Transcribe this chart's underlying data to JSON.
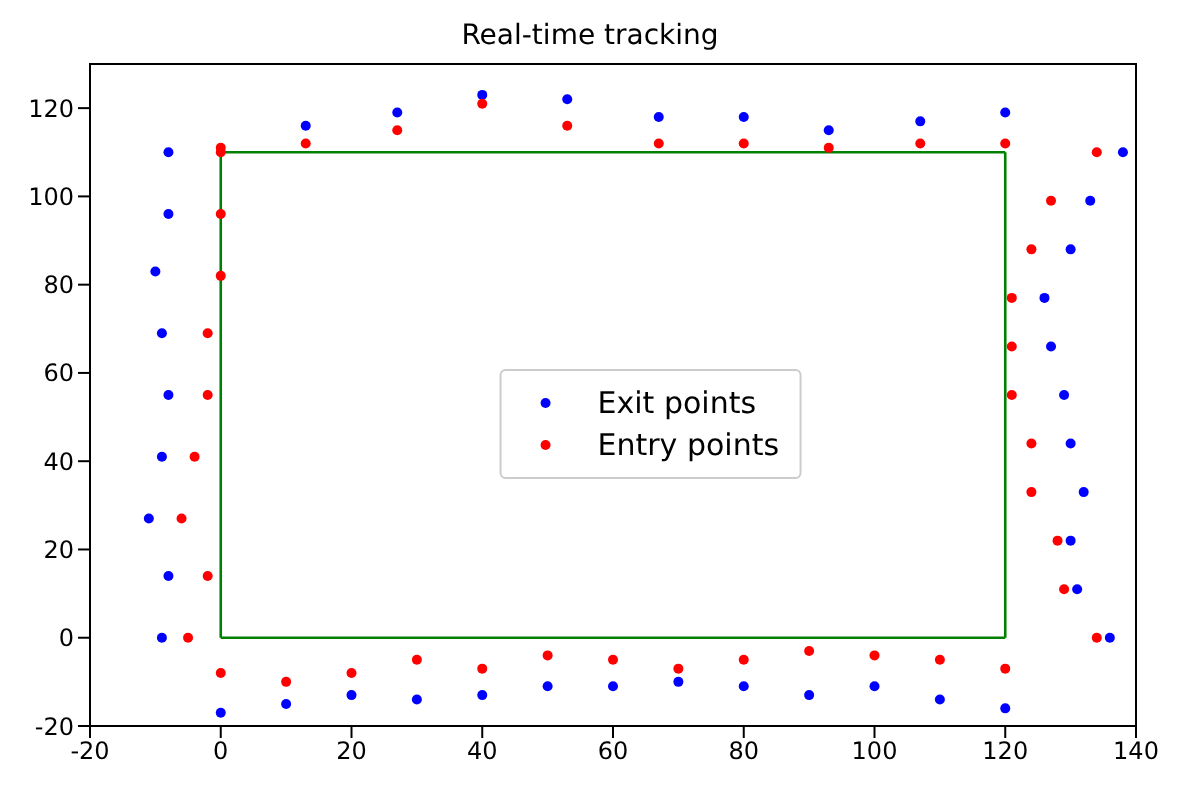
{
  "chart_data": {
    "type": "scatter",
    "title": "Real-time tracking",
    "xlim": [
      -20,
      140
    ],
    "ylim": [
      -20,
      130
    ],
    "xticks": [
      -20,
      0,
      20,
      40,
      60,
      80,
      100,
      120,
      140
    ],
    "yticks": [
      -20,
      0,
      20,
      40,
      60,
      80,
      100,
      120
    ],
    "grid": false,
    "legend": "center",
    "marker": "circle",
    "series": [
      {
        "name": "Exit points",
        "color": "#0000ff",
        "x": [
          -8,
          -8,
          -10,
          -9,
          -8,
          -9,
          -11,
          -8,
          -9,
          0,
          10,
          20,
          30,
          40,
          50,
          60,
          70,
          80,
          90,
          100,
          110,
          120,
          136,
          131,
          130,
          132,
          130,
          129,
          127,
          126,
          130,
          133,
          138,
          13,
          27,
          40,
          53,
          67,
          80,
          93,
          107,
          120
        ],
        "values": [
          110,
          96,
          83,
          69,
          55,
          41,
          27,
          14,
          0,
          -17,
          -15,
          -13,
          -14,
          -13,
          -11,
          -11,
          -10,
          -11,
          -13,
          -11,
          -14,
          -16,
          0,
          11,
          22,
          33,
          44,
          55,
          66,
          77,
          88,
          99,
          110,
          116,
          119,
          123,
          122,
          118,
          118,
          115,
          117,
          119
        ]
      },
      {
        "name": "Entry points",
        "color": "#ff0000",
        "x": [
          0,
          0,
          0,
          0,
          -2,
          -2,
          -4,
          -6,
          -2,
          -5,
          0,
          10,
          20,
          30,
          40,
          50,
          60,
          70,
          80,
          90,
          100,
          110,
          120,
          134,
          129,
          128,
          124,
          124,
          121,
          121,
          121,
          124,
          127,
          134,
          13,
          27,
          40,
          53,
          67,
          80,
          93,
          107,
          120
        ],
        "values": [
          111,
          110,
          96,
          82,
          69,
          55,
          41,
          27,
          14,
          0,
          -8,
          -10,
          -8,
          -5,
          -7,
          -4,
          -5,
          -7,
          -5,
          -3,
          -4,
          -5,
          -7,
          0,
          11,
          22,
          33,
          44,
          55,
          66,
          77,
          88,
          99,
          110,
          112,
          115,
          121,
          116,
          112,
          112,
          111,
          112,
          112
        ]
      },
      {
        "type": "line",
        "color": "#008000",
        "line_style": "solid",
        "marker": "none",
        "x": [
          0,
          120
        ],
        "values": [
          0,
          0
        ]
      },
      {
        "type": "line",
        "color": "#008000",
        "line_style": "solid",
        "marker": "none",
        "x": [
          0,
          120
        ],
        "values": [
          110,
          110
        ]
      },
      {
        "type": "line",
        "color": "#008000",
        "line_style": "solid",
        "marker": "none",
        "x": [
          0,
          0
        ],
        "values": [
          0,
          110
        ]
      },
      {
        "type": "line",
        "color": "#008000",
        "line_style": "solid",
        "marker": "none",
        "x": [
          120,
          120
        ],
        "values": [
          0,
          110
        ]
      }
    ]
  }
}
